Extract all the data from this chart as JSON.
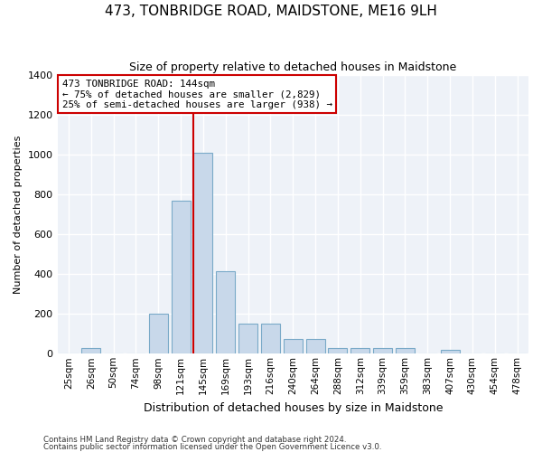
{
  "title": "473, TONBRIDGE ROAD, MAIDSTONE, ME16 9LH",
  "subtitle": "Size of property relative to detached houses in Maidstone",
  "xlabel": "Distribution of detached houses by size in Maidstone",
  "ylabel": "Number of detached properties",
  "categories": [
    "25sqm",
    "26sqm",
    "50sqm",
    "74sqm",
    "98sqm",
    "121sqm",
    "145sqm",
    "169sqm",
    "193sqm",
    "216sqm",
    "240sqm",
    "264sqm",
    "288sqm",
    "312sqm",
    "339sqm",
    "359sqm",
    "383sqm",
    "407sqm",
    "430sqm",
    "454sqm",
    "478sqm"
  ],
  "values": [
    0,
    30,
    0,
    0,
    200,
    770,
    1010,
    415,
    150,
    150,
    75,
    75,
    30,
    30,
    30,
    30,
    0,
    20,
    0,
    0,
    0
  ],
  "bar_color": "#c8d8ea",
  "bar_edge_color": "#7aaac8",
  "vline_x_index": 6,
  "vline_color": "#cc0000",
  "annotation_text": "473 TONBRIDGE ROAD: 144sqm\n← 75% of detached houses are smaller (2,829)\n25% of semi-detached houses are larger (938) →",
  "annotation_box_color": "#ffffff",
  "annotation_box_edge_color": "#cc0000",
  "ylim": [
    0,
    1400
  ],
  "yticks": [
    0,
    200,
    400,
    600,
    800,
    1000,
    1200,
    1400
  ],
  "footer1": "Contains HM Land Registry data © Crown copyright and database right 2024.",
  "footer2": "Contains public sector information licensed under the Open Government Licence v3.0.",
  "background_color": "#ffffff",
  "plot_bg_color": "#eef2f8"
}
